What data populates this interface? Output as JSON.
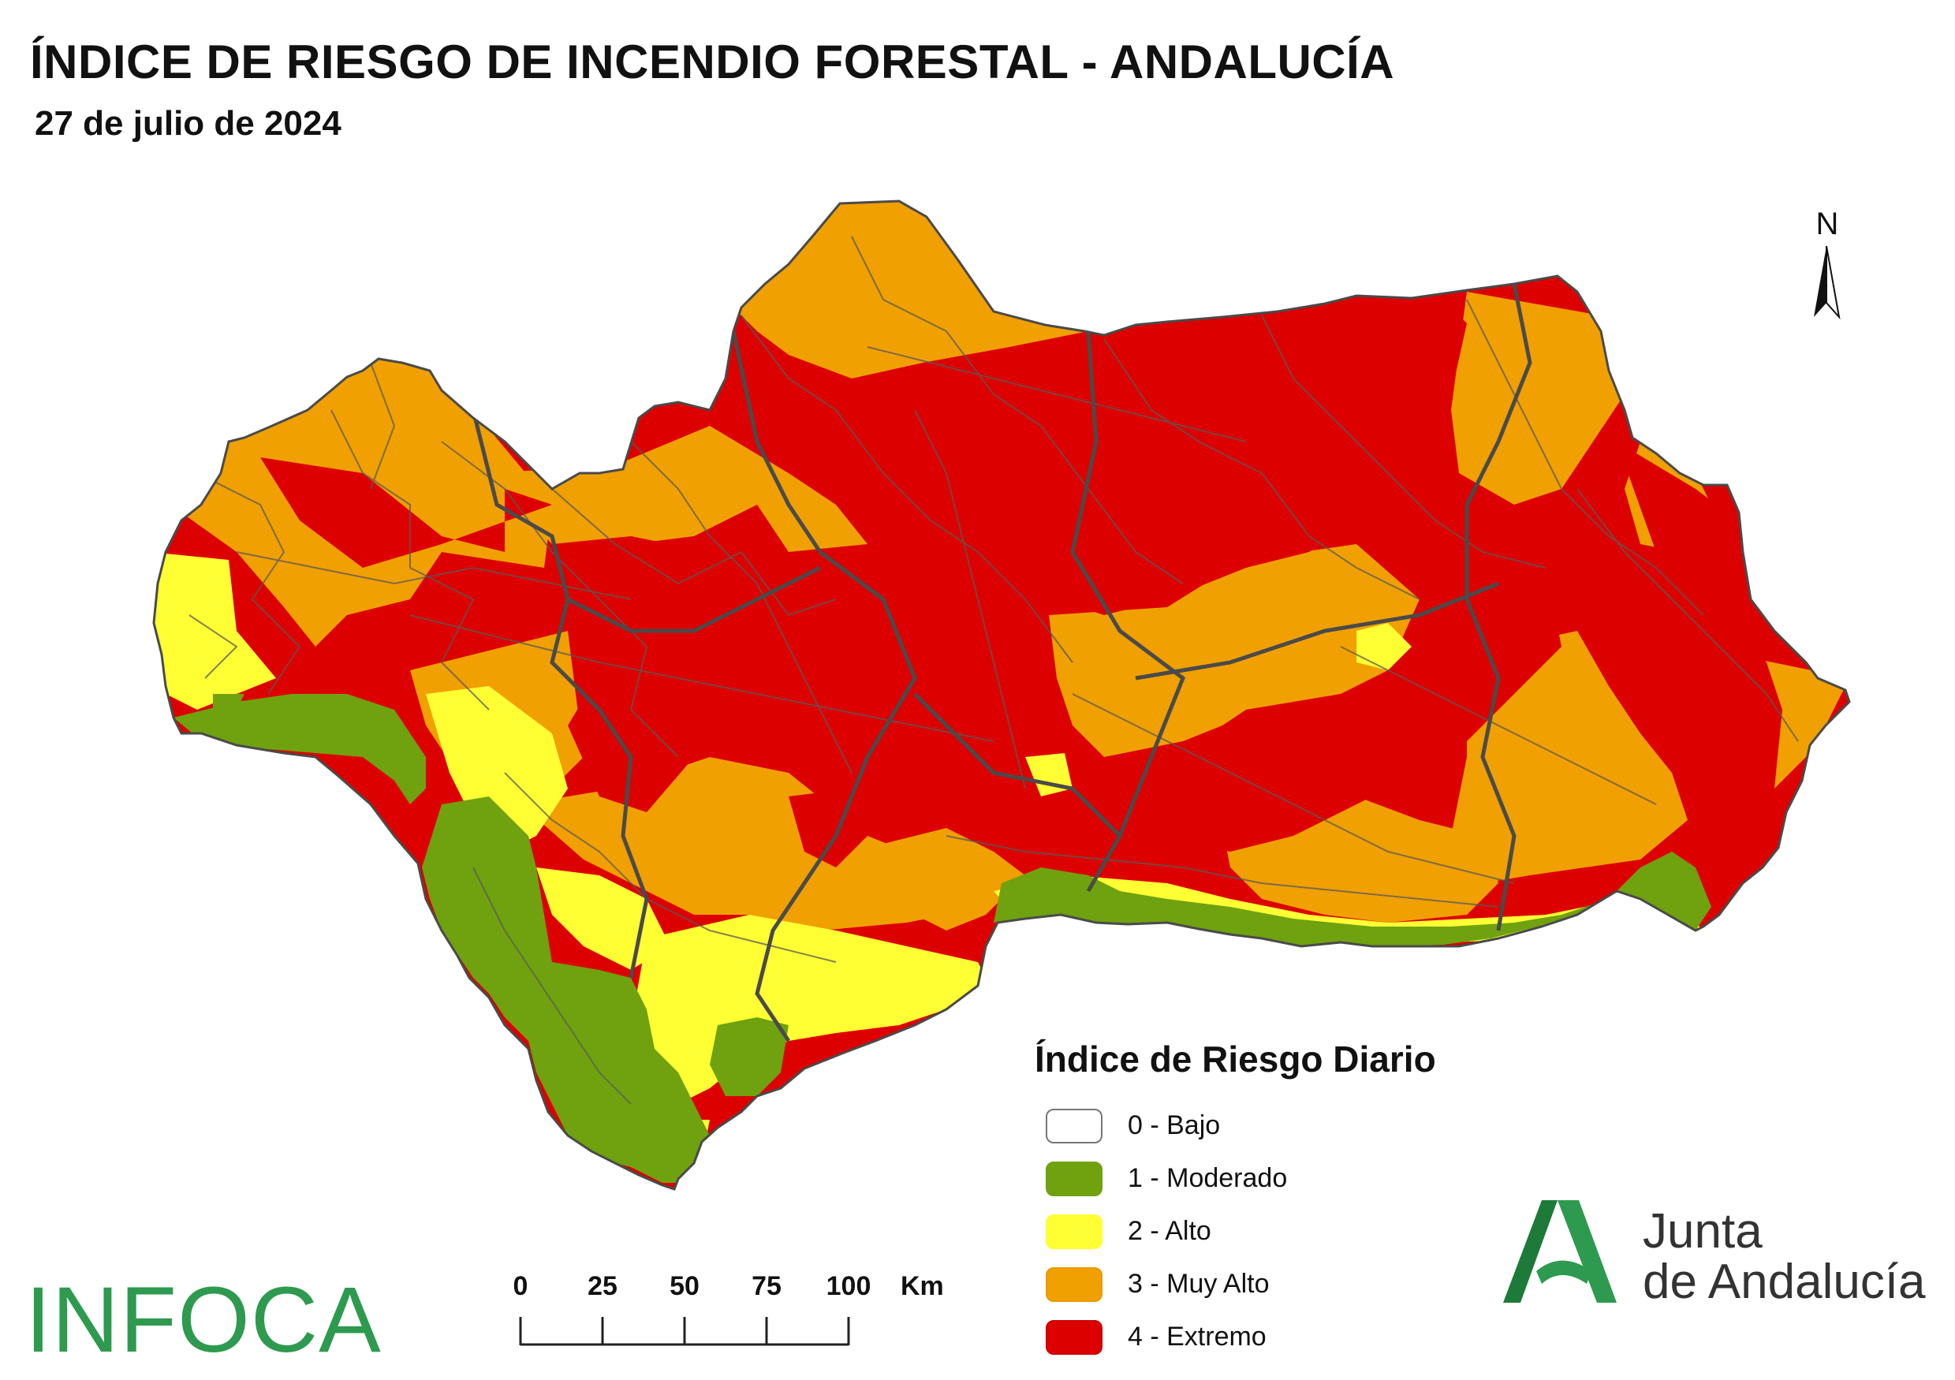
{
  "header": {
    "title": "ÍNDICE DE RIESGO DE INCENDIO FORESTAL - ANDALUCÍA",
    "date": "27 de julio de 2024"
  },
  "north_arrow": {
    "label": "N"
  },
  "legend": {
    "title": "Índice de Riesgo Diario",
    "items": [
      {
        "label": "0 - Bajo",
        "color": "#ffffff"
      },
      {
        "label": "1 - Moderado",
        "color": "#6fa20e"
      },
      {
        "label": "2 - Alto",
        "color": "#ffff33"
      },
      {
        "label": "3 - Muy Alto",
        "color": "#f0a000"
      },
      {
        "label": "4 - Extremo",
        "color": "#dd0000"
      }
    ]
  },
  "scale_bar": {
    "ticks": [
      "0",
      "25",
      "50",
      "75",
      "100"
    ],
    "unit": "Km"
  },
  "logos": {
    "infoca": "INFOCA",
    "junta_line1": "Junta",
    "junta_line2": "de Andalucía",
    "junta_color": "#2e9a4f"
  },
  "map_colors": {
    "moderado": "#6fa20e",
    "alto": "#ffff33",
    "muy_alto": "#f0a000",
    "extremo": "#dd0000",
    "boundaries": "#5a5a5a"
  }
}
